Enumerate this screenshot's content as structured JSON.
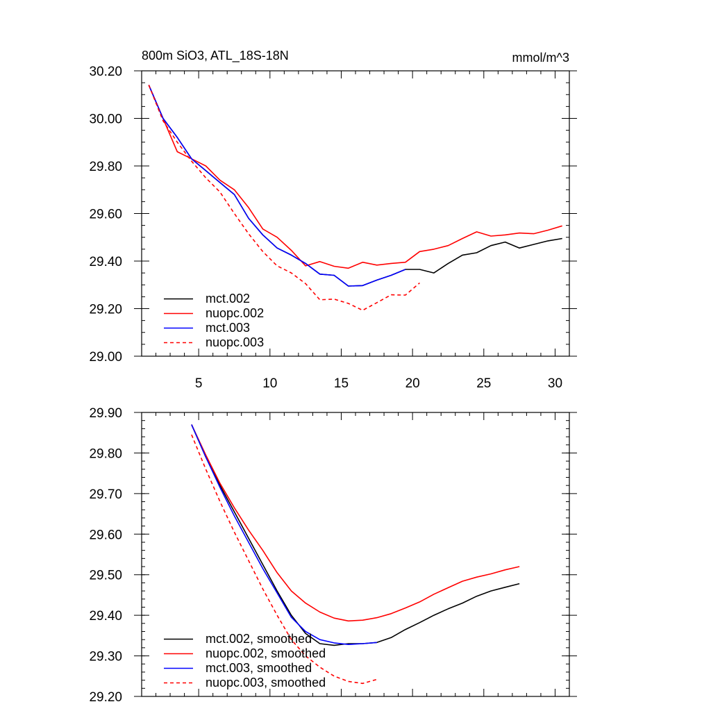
{
  "chart_data": [
    {
      "type": "line",
      "title": "800m SiO3, ATL_18S-18N",
      "units": "mmol/m^3",
      "xlabel": "",
      "ylabel": "",
      "xlim": [
        1,
        31
      ],
      "ylim": [
        29.0,
        30.2
      ],
      "xticks": [
        5,
        10,
        15,
        20,
        25,
        30
      ],
      "xtick_labels": [
        "5",
        "10",
        "15",
        "20",
        "25",
        "30"
      ],
      "yticks": [
        29.0,
        29.2,
        29.4,
        29.6,
        29.8,
        30.0,
        30.2
      ],
      "ytick_labels": [
        "29.00",
        "29.20",
        "29.40",
        "29.60",
        "29.80",
        "30.00",
        "30.20"
      ],
      "legend_position": "bottom-left",
      "series": [
        {
          "name": "mct.002",
          "color": "#000000",
          "dash": "solid",
          "x": [
            1.5,
            2.5,
            3.5,
            4.5,
            5.5,
            6.5,
            7.5,
            8.5,
            9.5,
            10.5,
            11.5,
            12.5,
            13.5,
            14.5,
            15.5,
            16.5,
            17.5,
            18.5,
            19.5,
            20.5,
            21.5,
            22.5,
            23.5,
            24.5,
            25.5,
            26.5,
            27.5,
            28.5,
            29.5,
            30.5
          ],
          "values": [
            30.14,
            30.0,
            29.92,
            29.83,
            29.78,
            29.73,
            29.68,
            29.58,
            29.51,
            29.455,
            29.425,
            29.39,
            29.345,
            29.34,
            29.295,
            29.297,
            29.32,
            29.34,
            29.365,
            29.365,
            29.35,
            29.39,
            29.425,
            29.435,
            29.465,
            29.48,
            29.455,
            29.47,
            29.485,
            29.495
          ]
        },
        {
          "name": "nuopc.002",
          "color": "#ff0000",
          "dash": "solid",
          "x": [
            1.5,
            2.5,
            3.5,
            4.5,
            5.5,
            6.5,
            7.5,
            8.5,
            9.5,
            10.5,
            11.5,
            12.5,
            13.5,
            14.5,
            15.5,
            16.5,
            17.5,
            18.5,
            19.5,
            20.5,
            21.5,
            22.5,
            23.5,
            24.5,
            25.5,
            26.5,
            27.5,
            28.5,
            29.5,
            30.5
          ],
          "values": [
            30.14,
            30.0,
            29.86,
            29.83,
            29.8,
            29.74,
            29.7,
            29.625,
            29.535,
            29.5,
            29.445,
            29.38,
            29.398,
            29.378,
            29.37,
            29.395,
            29.383,
            29.39,
            29.395,
            29.44,
            29.45,
            29.465,
            29.495,
            29.523,
            29.505,
            29.51,
            29.518,
            29.515,
            29.53,
            29.548
          ]
        },
        {
          "name": "mct.003",
          "color": "#0000ff",
          "dash": "solid",
          "x": [
            1.5,
            2.5,
            3.5,
            4.5,
            5.5,
            6.5,
            7.5,
            8.5,
            9.5,
            10.5,
            11.5,
            12.5,
            13.5,
            14.5,
            15.5,
            16.5,
            17.5,
            18.5,
            19.5
          ],
          "values": [
            30.14,
            30.0,
            29.92,
            29.83,
            29.78,
            29.73,
            29.68,
            29.58,
            29.51,
            29.455,
            29.425,
            29.39,
            29.345,
            29.34,
            29.295,
            29.297,
            29.32,
            29.34,
            29.365
          ]
        },
        {
          "name": "nuopc.003",
          "color": "#ff0000",
          "dash": "dashed",
          "x": [
            1.5,
            2.5,
            3.5,
            4.5,
            5.5,
            6.5,
            7.5,
            8.5,
            9.5,
            10.5,
            11.5,
            12.5,
            13.5,
            14.5,
            15.5,
            16.5,
            17.5,
            18.5,
            19.5,
            20.5
          ],
          "values": [
            30.14,
            29.99,
            29.9,
            29.82,
            29.75,
            29.69,
            29.6,
            29.515,
            29.44,
            29.38,
            29.35,
            29.305,
            29.237,
            29.24,
            29.222,
            29.193,
            29.225,
            29.258,
            29.257,
            29.308
          ]
        }
      ]
    },
    {
      "type": "line",
      "title": "",
      "xlabel": "",
      "ylabel": "",
      "xlim": [
        1,
        31
      ],
      "ylim": [
        29.2,
        29.9
      ],
      "xticks": [
        5,
        10,
        15,
        20,
        25,
        30
      ],
      "xtick_labels": [],
      "yticks": [
        29.2,
        29.3,
        29.4,
        29.5,
        29.6,
        29.7,
        29.8,
        29.9
      ],
      "ytick_labels": [
        "29.20",
        "29.30",
        "29.40",
        "29.50",
        "29.60",
        "29.70",
        "29.80",
        "29.90"
      ],
      "legend_position": "bottom-left",
      "series": [
        {
          "name": "mct.002, smoothed",
          "color": "#000000",
          "dash": "solid",
          "x": [
            4.5,
            5.5,
            6.5,
            7.5,
            8.5,
            9.5,
            10.5,
            11.5,
            12.5,
            13.5,
            14.5,
            15.5,
            16.5,
            17.5,
            18.5,
            19.5,
            20.5,
            21.5,
            22.5,
            23.5,
            24.5,
            25.5,
            26.5,
            27.5
          ],
          "values": [
            29.87,
            29.79,
            29.72,
            29.655,
            29.59,
            29.525,
            29.46,
            29.4,
            29.355,
            29.33,
            29.326,
            29.33,
            29.33,
            29.333,
            29.345,
            29.365,
            29.382,
            29.4,
            29.416,
            29.43,
            29.447,
            29.46,
            29.469,
            29.478
          ]
        },
        {
          "name": "nuopc.002, smoothed",
          "color": "#ff0000",
          "dash": "solid",
          "x": [
            4.5,
            5.5,
            6.5,
            7.5,
            8.5,
            9.5,
            10.5,
            11.5,
            12.5,
            13.5,
            14.5,
            15.5,
            16.5,
            17.5,
            18.5,
            19.5,
            20.5,
            21.5,
            22.5,
            23.5,
            24.5,
            25.5,
            26.5,
            27.5
          ],
          "values": [
            29.87,
            29.795,
            29.725,
            29.665,
            29.61,
            29.56,
            29.505,
            29.46,
            29.43,
            29.408,
            29.393,
            29.386,
            29.388,
            29.394,
            29.404,
            29.418,
            29.433,
            29.452,
            29.468,
            29.484,
            29.494,
            29.502,
            29.512,
            29.52
          ]
        },
        {
          "name": "mct.003, smoothed",
          "color": "#0000ff",
          "dash": "solid",
          "x": [
            4.5,
            5.5,
            6.5,
            7.5,
            8.5,
            9.5,
            10.5,
            11.5,
            12.5,
            13.5,
            14.5,
            15.5,
            16.5,
            17.5
          ],
          "values": [
            29.87,
            29.79,
            29.715,
            29.645,
            29.58,
            29.515,
            29.455,
            29.395,
            29.36,
            29.34,
            29.332,
            29.328,
            29.33,
            29.333
          ]
        },
        {
          "name": "nuopc.003, smoothed",
          "color": "#ff0000",
          "dash": "dashed",
          "x": [
            4.5,
            5.5,
            6.5,
            7.5,
            8.5,
            9.5,
            10.5,
            11.5,
            12.5,
            13.5,
            14.5,
            15.5,
            16.5,
            17.5
          ],
          "values": [
            29.845,
            29.76,
            29.68,
            29.605,
            29.535,
            29.465,
            29.4,
            29.34,
            29.3,
            29.272,
            29.25,
            29.237,
            29.232,
            29.242
          ]
        }
      ]
    }
  ]
}
